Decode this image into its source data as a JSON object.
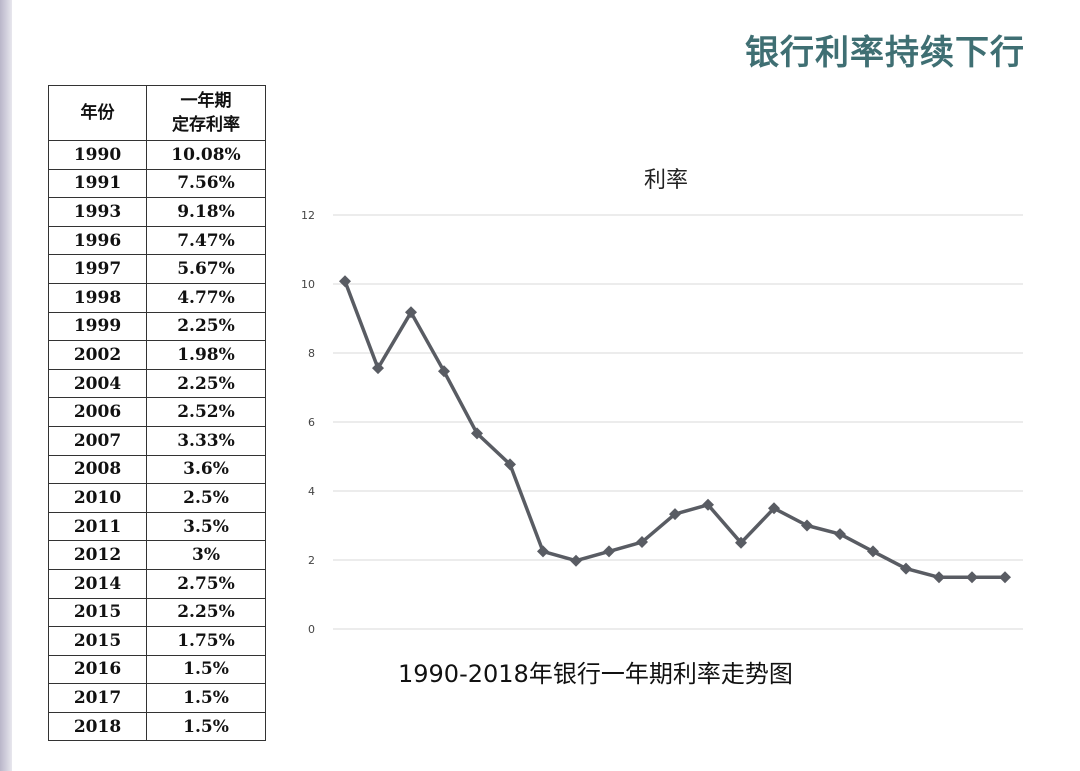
{
  "page_title": "银行利率持续下行",
  "table": {
    "header_year": "年份",
    "header_rate": "一年期\n定存利率",
    "rows": [
      {
        "year": "1990",
        "rate": "10.08%"
      },
      {
        "year": "1991",
        "rate": "7.56%"
      },
      {
        "year": "1993",
        "rate": "9.18%"
      },
      {
        "year": "1996",
        "rate": "7.47%"
      },
      {
        "year": "1997",
        "rate": "5.67%"
      },
      {
        "year": "1998",
        "rate": "4.77%"
      },
      {
        "year": "1999",
        "rate": "2.25%"
      },
      {
        "year": "2002",
        "rate": "1.98%"
      },
      {
        "year": "2004",
        "rate": "2.25%"
      },
      {
        "year": "2006",
        "rate": "2.52%"
      },
      {
        "year": "2007",
        "rate": "3.33%"
      },
      {
        "year": "2008",
        "rate": "3.6%"
      },
      {
        "year": "2010",
        "rate": "2.5%"
      },
      {
        "year": "2011",
        "rate": "3.5%"
      },
      {
        "year": "2012",
        "rate": "3%"
      },
      {
        "year": "2014",
        "rate": "2.75%"
      },
      {
        "year": "2015",
        "rate": "2.25%"
      },
      {
        "year": "2015",
        "rate": "1.75%"
      },
      {
        "year": "2016",
        "rate": "1.5%"
      },
      {
        "year": "2017",
        "rate": "1.5%"
      },
      {
        "year": "2018",
        "rate": "1.5%"
      }
    ]
  },
  "chart_data": {
    "type": "line",
    "title": "利率",
    "xlabel": "",
    "ylabel": "",
    "ylim": [
      0,
      12
    ],
    "yticks": [
      "0",
      "2",
      "4",
      "6",
      "8",
      "10",
      "12"
    ],
    "grid": true,
    "series": [
      {
        "values": [
          10.08,
          7.56,
          9.18,
          7.47,
          5.67,
          4.77,
          2.25,
          1.98,
          2.25,
          2.52,
          3.33,
          3.6,
          2.5,
          3.5,
          3,
          2.75,
          2.25,
          1.75,
          1.5,
          1.5,
          1.5
        ],
        "color": "#595c63",
        "marker": "diamond"
      }
    ]
  },
  "chart_caption": "1990-2018年银行一年期利率走势图",
  "colors": {
    "title": "#3f6f73",
    "line": "#595c63",
    "grid": "#d9d9d9"
  }
}
